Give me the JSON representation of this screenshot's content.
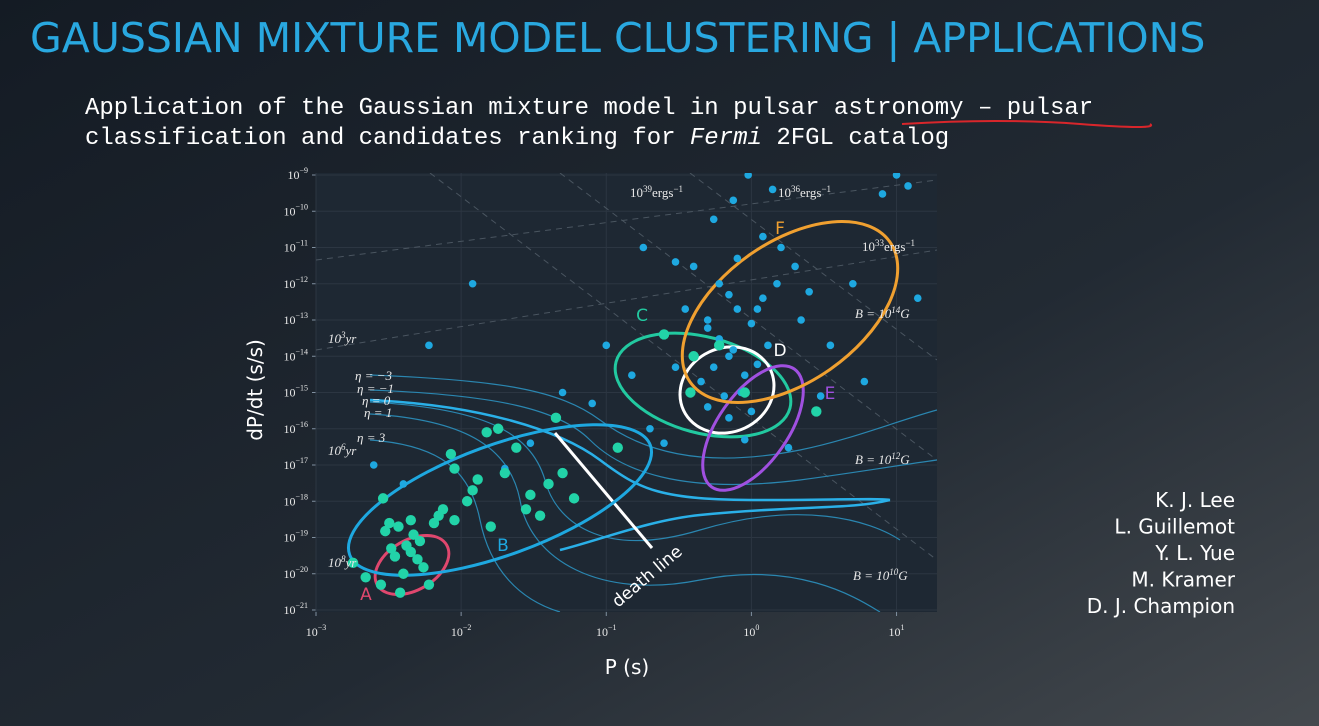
{
  "header": {
    "title": "GAUSSIAN MIXTURE MODEL CLUSTERING | APPLICATIONS"
  },
  "subtitle": {
    "line1": "Application of the Gaussian mixture model in pulsar astronomy – pulsar",
    "line2": [
      "classification and candidates ranking for ",
      "Fermi",
      " 2FGL catalog"
    ]
  },
  "authors": [
    "K. J. Lee",
    "L. Guillemot",
    "Y. L. Yue",
    "M. Kramer",
    "D. J. Champion"
  ],
  "chart_data": {
    "type": "scatter",
    "xlabel": "P (s)",
    "ylabel": "dP/dt (s/s)",
    "xscale": "log",
    "yscale": "log",
    "grid": true,
    "xlim": [
      0.001,
      19
    ],
    "ylim": [
      1e-21,
      1e-09
    ],
    "xticks": [
      {
        "value": 0.001,
        "label": "10",
        "exponent": "−3"
      },
      {
        "value": 0.01,
        "label": "10",
        "exponent": "−2"
      },
      {
        "value": 0.1,
        "label": "10",
        "exponent": "−1"
      },
      {
        "value": 1,
        "label": "10",
        "exponent": "0"
      },
      {
        "value": 10,
        "label": "10",
        "exponent": "1"
      }
    ],
    "yticks": [
      {
        "value": 1e-21,
        "label": "10",
        "exponent": "−21"
      },
      {
        "value": 1e-20,
        "label": "10",
        "exponent": "−20"
      },
      {
        "value": 1e-19,
        "label": "10",
        "exponent": "−19"
      },
      {
        "value": 1e-18,
        "label": "10",
        "exponent": "−18"
      },
      {
        "value": 1e-17,
        "label": "10",
        "exponent": "−17"
      },
      {
        "value": 1e-16,
        "label": "10",
        "exponent": "−16"
      },
      {
        "value": 1e-15,
        "label": "10",
        "exponent": "−15"
      },
      {
        "value": 1e-14,
        "label": "10",
        "exponent": "−14"
      },
      {
        "value": 1e-13,
        "label": "10",
        "exponent": "−13"
      },
      {
        "value": 1e-12,
        "label": "10",
        "exponent": "−12"
      },
      {
        "value": 1e-11,
        "label": "10",
        "exponent": "−11"
      },
      {
        "value": 1e-10,
        "label": "10",
        "exponent": "−10"
      },
      {
        "value": 1e-09,
        "label": "10",
        "exponent": "−9"
      }
    ],
    "series": [
      {
        "color": "#1ea8e0",
        "x": [
          0.5,
          0.6,
          0.7,
          0.8,
          1.0,
          1.2,
          1.5,
          0.45,
          0.55,
          0.65,
          0.75,
          0.9,
          1.1,
          1.3,
          0.4,
          0.5,
          0.7,
          0.85,
          1.0,
          0.6,
          0.8,
          1.2,
          1.6,
          2.0,
          0.35,
          0.3,
          0.55,
          0.95,
          1.4,
          0.75,
          2.5,
          3.5,
          5,
          8,
          10,
          0.2,
          0.15,
          0.1,
          0.08,
          0.05,
          0.03,
          0.02,
          0.012,
          0.006,
          0.004,
          0.0025,
          0.25,
          0.18,
          0.4,
          0.9,
          1.8,
          3,
          6,
          12,
          14,
          0.7,
          1.1,
          0.5,
          0.3,
          2.2
        ],
        "values": [
          1e-13,
          3e-14,
          5e-13,
          2e-13,
          8e-14,
          4e-13,
          1e-12,
          2e-15,
          5e-15,
          8e-16,
          1.5e-14,
          3e-15,
          6e-15,
          2e-14,
          1e-14,
          4e-16,
          2e-16,
          1e-15,
          3e-16,
          1e-12,
          5e-12,
          2e-11,
          1e-11,
          3e-12,
          2e-13,
          5e-15,
          6e-11,
          1e-09,
          4e-10,
          2e-10,
          6e-13,
          2e-14,
          1e-12,
          3e-10,
          1e-09,
          1e-16,
          3e-15,
          2e-14,
          5e-16,
          1e-15,
          4e-17,
          8e-18,
          1e-12,
          2e-14,
          3e-18,
          1e-17,
          4e-17,
          1e-11,
          3e-12,
          5e-17,
          3e-17,
          8e-16,
          2e-15,
          5e-10,
          4e-13,
          1e-14,
          2e-13,
          6e-14,
          4e-12,
          1e-13
        ]
      },
      {
        "color": "#22d3a8",
        "x": [
          0.0018,
          0.0022,
          0.0028,
          0.003,
          0.0033,
          0.0035,
          0.0037,
          0.004,
          0.0042,
          0.0045,
          0.0047,
          0.005,
          0.0052,
          0.0055,
          0.006,
          0.0032,
          0.0045,
          0.0038,
          0.0029,
          0.0065,
          0.0075,
          0.009,
          0.011,
          0.013,
          0.016,
          0.02,
          0.024,
          0.03,
          0.035,
          0.04,
          0.05,
          0.06,
          0.0085,
          0.012,
          0.018,
          0.028,
          0.045,
          0.015,
          0.009,
          0.007,
          0.25,
          0.4,
          0.6,
          0.9,
          2.8,
          0.38,
          0.12
        ],
        "values": [
          2e-20,
          8e-21,
          5e-21,
          1.5e-19,
          5e-20,
          3e-20,
          2e-19,
          1e-20,
          6e-20,
          4e-20,
          1.2e-19,
          2.5e-20,
          8e-20,
          1.5e-20,
          5e-21,
          2.5e-19,
          3e-19,
          3e-21,
          1.2e-18,
          2.5e-19,
          6e-19,
          3e-19,
          1e-18,
          4e-18,
          2e-19,
          6e-18,
          3e-17,
          1.5e-18,
          4e-19,
          3e-18,
          6e-18,
          1.2e-18,
          2e-17,
          2e-18,
          1e-16,
          6e-19,
          2e-16,
          8e-17,
          8e-18,
          4e-19,
          4e-14,
          1e-14,
          2e-14,
          1e-15,
          3e-16,
          1e-15,
          3e-17
        ]
      }
    ],
    "clusters": [
      {
        "label": "A",
        "color": "#e0476e"
      },
      {
        "label": "B",
        "color": "#1ea8e0"
      },
      {
        "label": "C",
        "color": "#22c9a0"
      },
      {
        "label": "D",
        "color": "#ffffff"
      },
      {
        "label": "E",
        "color": "#a050e0"
      },
      {
        "label": "F",
        "color": "#f0a030"
      }
    ],
    "annotations": [
      [
        {
          "t": "10"
        },
        {
          "t": "39",
          "sup": true
        },
        {
          "t": "ergs"
        },
        {
          "t": "−1",
          "sup": true
        }
      ],
      [
        {
          "t": "10"
        },
        {
          "t": "36",
          "sup": true
        },
        {
          "t": "ergs"
        },
        {
          "t": "−1",
          "sup": true
        }
      ],
      [
        {
          "t": "10"
        },
        {
          "t": "33",
          "sup": true
        },
        {
          "t": "ergs"
        },
        {
          "t": "−1",
          "sup": true
        }
      ],
      [
        {
          "t": "B = 10"
        },
        {
          "t": "14",
          "sup": true
        },
        {
          "t": "G"
        }
      ],
      [
        {
          "t": "B = 10"
        },
        {
          "t": "12",
          "sup": true
        },
        {
          "t": "G"
        }
      ],
      [
        {
          "t": "B = 10"
        },
        {
          "t": "10",
          "sup": true
        },
        {
          "t": "G"
        }
      ],
      [
        {
          "t": "10"
        },
        {
          "t": "3",
          "sup": true
        },
        {
          "t": "yr"
        }
      ],
      [
        {
          "t": "10"
        },
        {
          "t": "6",
          "sup": true
        },
        {
          "t": "yr"
        }
      ],
      [
        {
          "t": "10"
        },
        {
          "t": "8",
          "sup": true
        },
        {
          "t": "yr"
        }
      ],
      [
        {
          "t": "η = −3"
        }
      ],
      [
        {
          "t": "η = −1"
        }
      ],
      [
        {
          "t": "η = 0"
        }
      ],
      [
        {
          "t": "η = 1"
        }
      ],
      [
        {
          "t": "η = 3"
        }
      ],
      [
        {
          "t": "death line"
        }
      ]
    ]
  }
}
